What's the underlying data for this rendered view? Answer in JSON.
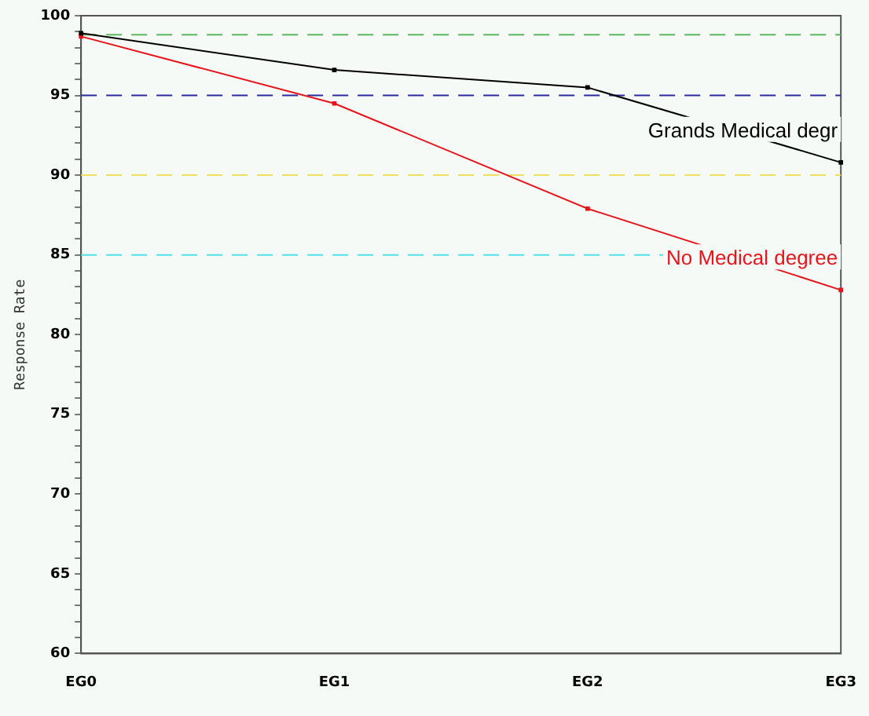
{
  "chart_data": {
    "type": "line",
    "ylabel": "Response Rate",
    "categories": [
      "EG0",
      "EG1",
      "EG2",
      "EG3"
    ],
    "series": [
      {
        "name": "Grands Medical degr",
        "color": "#000000",
        "values": [
          98.9,
          96.6,
          95.5,
          90.8
        ]
      },
      {
        "name": "No Medical degree",
        "color": "#e8141c",
        "values": [
          98.7,
          94.5,
          87.9,
          82.8
        ]
      }
    ],
    "ylim": [
      60,
      100
    ],
    "yticks": [
      60,
      {
        "value": 61,
        "label": null
      },
      {
        "value": 62,
        "label": null
      },
      {
        "value": 63,
        "label": null
      },
      {
        "value": 64,
        "label": null
      },
      65,
      {
        "value": 66,
        "label": null
      },
      {
        "value": 67,
        "label": null
      },
      {
        "value": 68,
        "label": null
      },
      {
        "value": 69,
        "label": null
      },
      70,
      {
        "value": 71,
        "label": null
      },
      {
        "value": 72,
        "label": null
      },
      {
        "value": 73,
        "label": null
      },
      {
        "value": 74,
        "label": null
      },
      75,
      {
        "value": 76,
        "label": null
      },
      {
        "value": 77,
        "label": null
      },
      {
        "value": 78,
        "label": null
      },
      {
        "value": 79,
        "label": null
      },
      80,
      {
        "value": 81,
        "label": null
      },
      {
        "value": 82,
        "label": null
      },
      {
        "value": 83,
        "label": null
      },
      {
        "value": 84,
        "label": null
      },
      85,
      {
        "value": 86,
        "label": null
      },
      {
        "value": 87,
        "label": null
      },
      {
        "value": 88,
        "label": null
      },
      {
        "value": 89,
        "label": null
      },
      90,
      {
        "value": 91,
        "label": null
      },
      {
        "value": 92,
        "label": null
      },
      {
        "value": 93,
        "label": null
      },
      {
        "value": 94,
        "label": null
      },
      95,
      {
        "value": 96,
        "label": null
      },
      {
        "value": 97,
        "label": null
      },
      {
        "value": 98,
        "label": null
      },
      {
        "value": 99,
        "label": null
      },
      100
    ],
    "ref_lines": [
      {
        "axis": "y",
        "value": 98.8,
        "color": "#5cb85c",
        "line_style": "dashed"
      },
      {
        "axis": "y",
        "value": 95,
        "color": "#2a2a9c",
        "line_style": "dashed"
      },
      {
        "axis": "y",
        "value": 90,
        "color": "#f0e060",
        "line_style": "dashed"
      },
      {
        "axis": "y",
        "value": 85,
        "color": "#50e0e8",
        "line_style": "dashed"
      }
    ],
    "grid": false,
    "legend": false,
    "marker": "square",
    "line_style": "solid"
  }
}
